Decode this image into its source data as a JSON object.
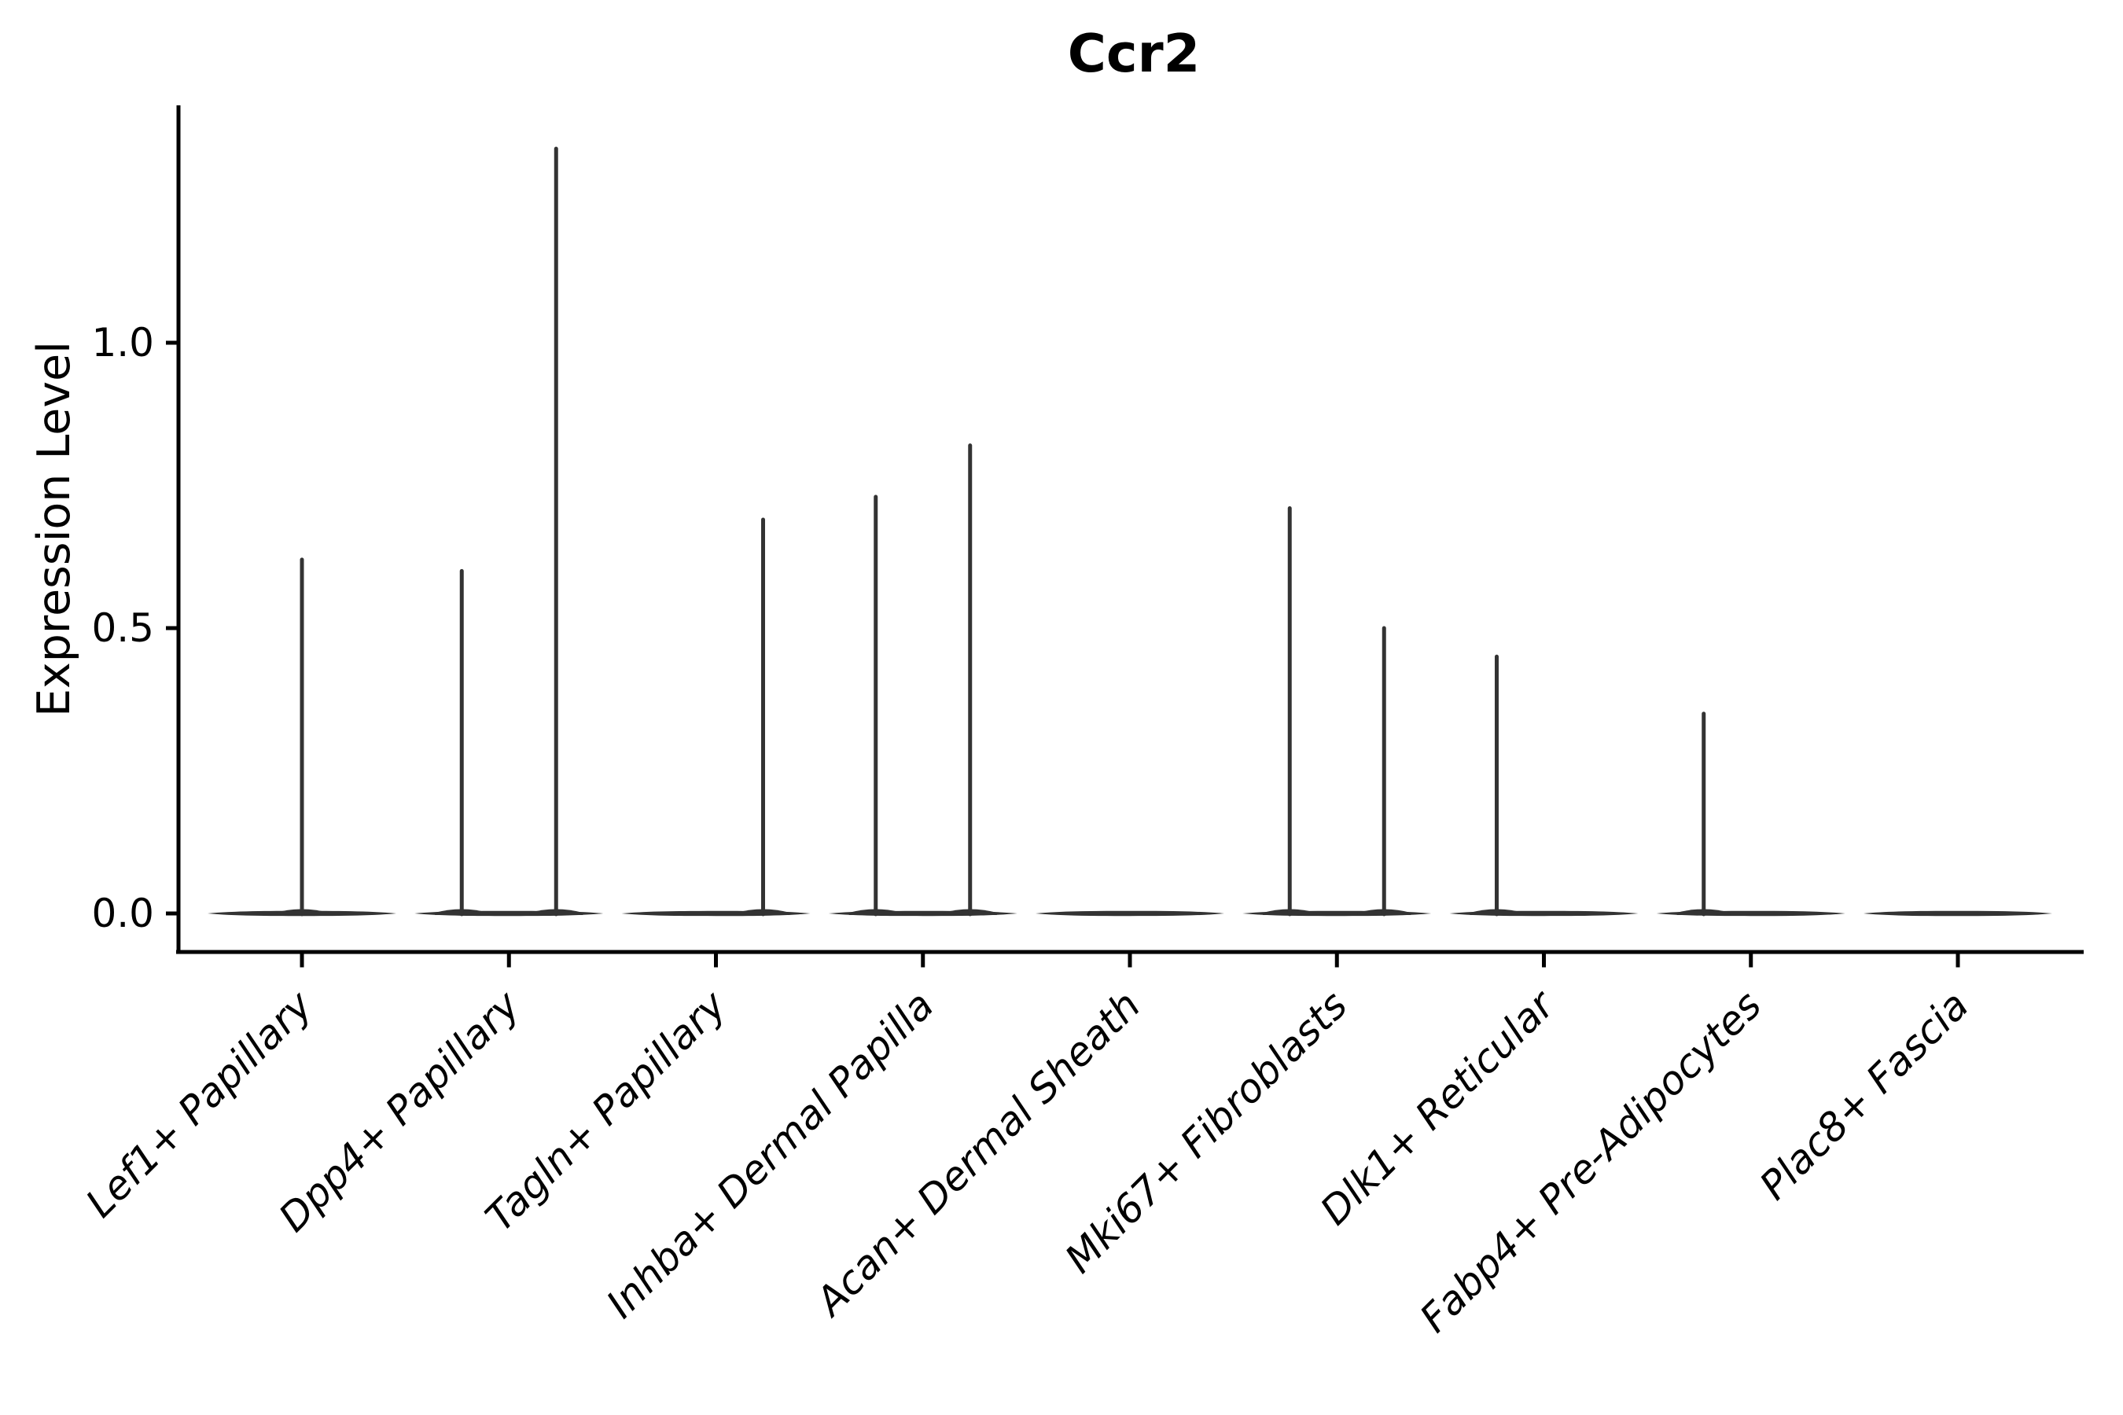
{
  "chart_data": {
    "type": "violin",
    "title": "Ccr2",
    "xlabel": "",
    "ylabel": "Expression Level",
    "y_ticks": [
      0.0,
      0.5,
      1.0
    ],
    "y_tick_labels": [
      "0.0",
      "0.5",
      "1.0"
    ],
    "ylim": [
      -0.07,
      1.42
    ],
    "grid": false,
    "legend": false,
    "baseline_value": 0.0,
    "categories": [
      "Lef1+ Papillary",
      "Dpp4+ Papillary",
      "Tagln+ Papillary",
      "Inhba+ Dermal Papilla",
      "Acan+ Dermal Sheath",
      "Mki67+ Fibroblasts",
      "Dlk1+ Reticular",
      "Fabp4+ Pre-Adipocytes",
      "Plac8+ Fascia"
    ],
    "violins": [
      {
        "category": "Lef1+ Papillary",
        "spikes": [
          {
            "dx": 0,
            "max": 0.62
          }
        ]
      },
      {
        "category": "Dpp4+ Papillary",
        "spikes": [
          {
            "dx": -60,
            "max": 0.6
          },
          {
            "dx": 60,
            "max": 1.34
          }
        ]
      },
      {
        "category": "Tagln+ Papillary",
        "spikes": [
          {
            "dx": 60,
            "max": 0.69
          }
        ]
      },
      {
        "category": "Inhba+ Dermal Papilla",
        "spikes": [
          {
            "dx": -60,
            "max": 0.73
          },
          {
            "dx": 60,
            "max": 0.82
          }
        ]
      },
      {
        "category": "Acan+ Dermal Sheath",
        "spikes": []
      },
      {
        "category": "Mki67+ Fibroblasts",
        "spikes": [
          {
            "dx": -60,
            "max": 0.71
          },
          {
            "dx": 60,
            "max": 0.5
          }
        ]
      },
      {
        "category": "Dlk1+ Reticular",
        "spikes": [
          {
            "dx": -60,
            "max": 0.45
          }
        ]
      },
      {
        "category": "Fabp4+ Pre-Adipocytes",
        "spikes": [
          {
            "dx": -60,
            "max": 0.35
          }
        ]
      },
      {
        "category": "Plac8+ Fascia",
        "spikes": []
      }
    ],
    "colors": {
      "ink": "#000000",
      "violin": "#333333"
    }
  }
}
